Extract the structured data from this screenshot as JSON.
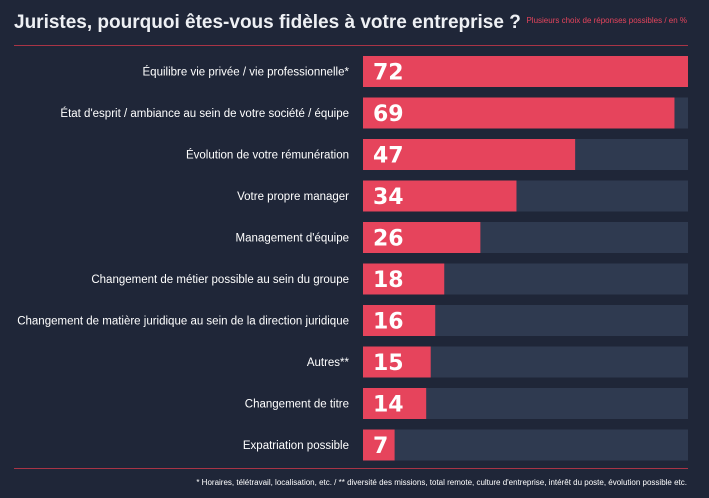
{
  "title": "Juristes, pourquoi êtes-vous fidèles à votre entreprise ?",
  "note": "Plusieurs choix de réponses possibles / en %",
  "footnote": "* Horaires, télétravail, localisation, etc. / ** diversité des missions, total remote, culture d'entreprise, intérêt du poste, évolution possible etc.",
  "colors": {
    "background": "#1f2638",
    "bar": "#e6445c",
    "track": "#2f3a50",
    "accent": "#e6445c",
    "label": "#ffffff"
  },
  "chart_data": {
    "type": "bar",
    "orientation": "horizontal",
    "categories": [
      "Équilibre vie privée / vie professionnelle*",
      "État d'esprit / ambiance au sein de votre société / équipe",
      "Évolution de votre rémunération",
      "Votre propre manager",
      "Management d'équipe",
      "Changement de métier possible au sein du groupe",
      "Changement de matière juridique au sein de la direction juridique",
      "Autres**",
      "Changement de titre",
      "Expatriation possible"
    ],
    "values": [
      72,
      69,
      47,
      34,
      26,
      18,
      16,
      15,
      14,
      7
    ],
    "data_labels": [
      "72",
      "69",
      "47",
      "34",
      "26",
      "18",
      "16",
      "15",
      "14",
      "7"
    ],
    "xlim": [
      0,
      72
    ],
    "unit": "%",
    "grid": false,
    "legend": "none"
  }
}
